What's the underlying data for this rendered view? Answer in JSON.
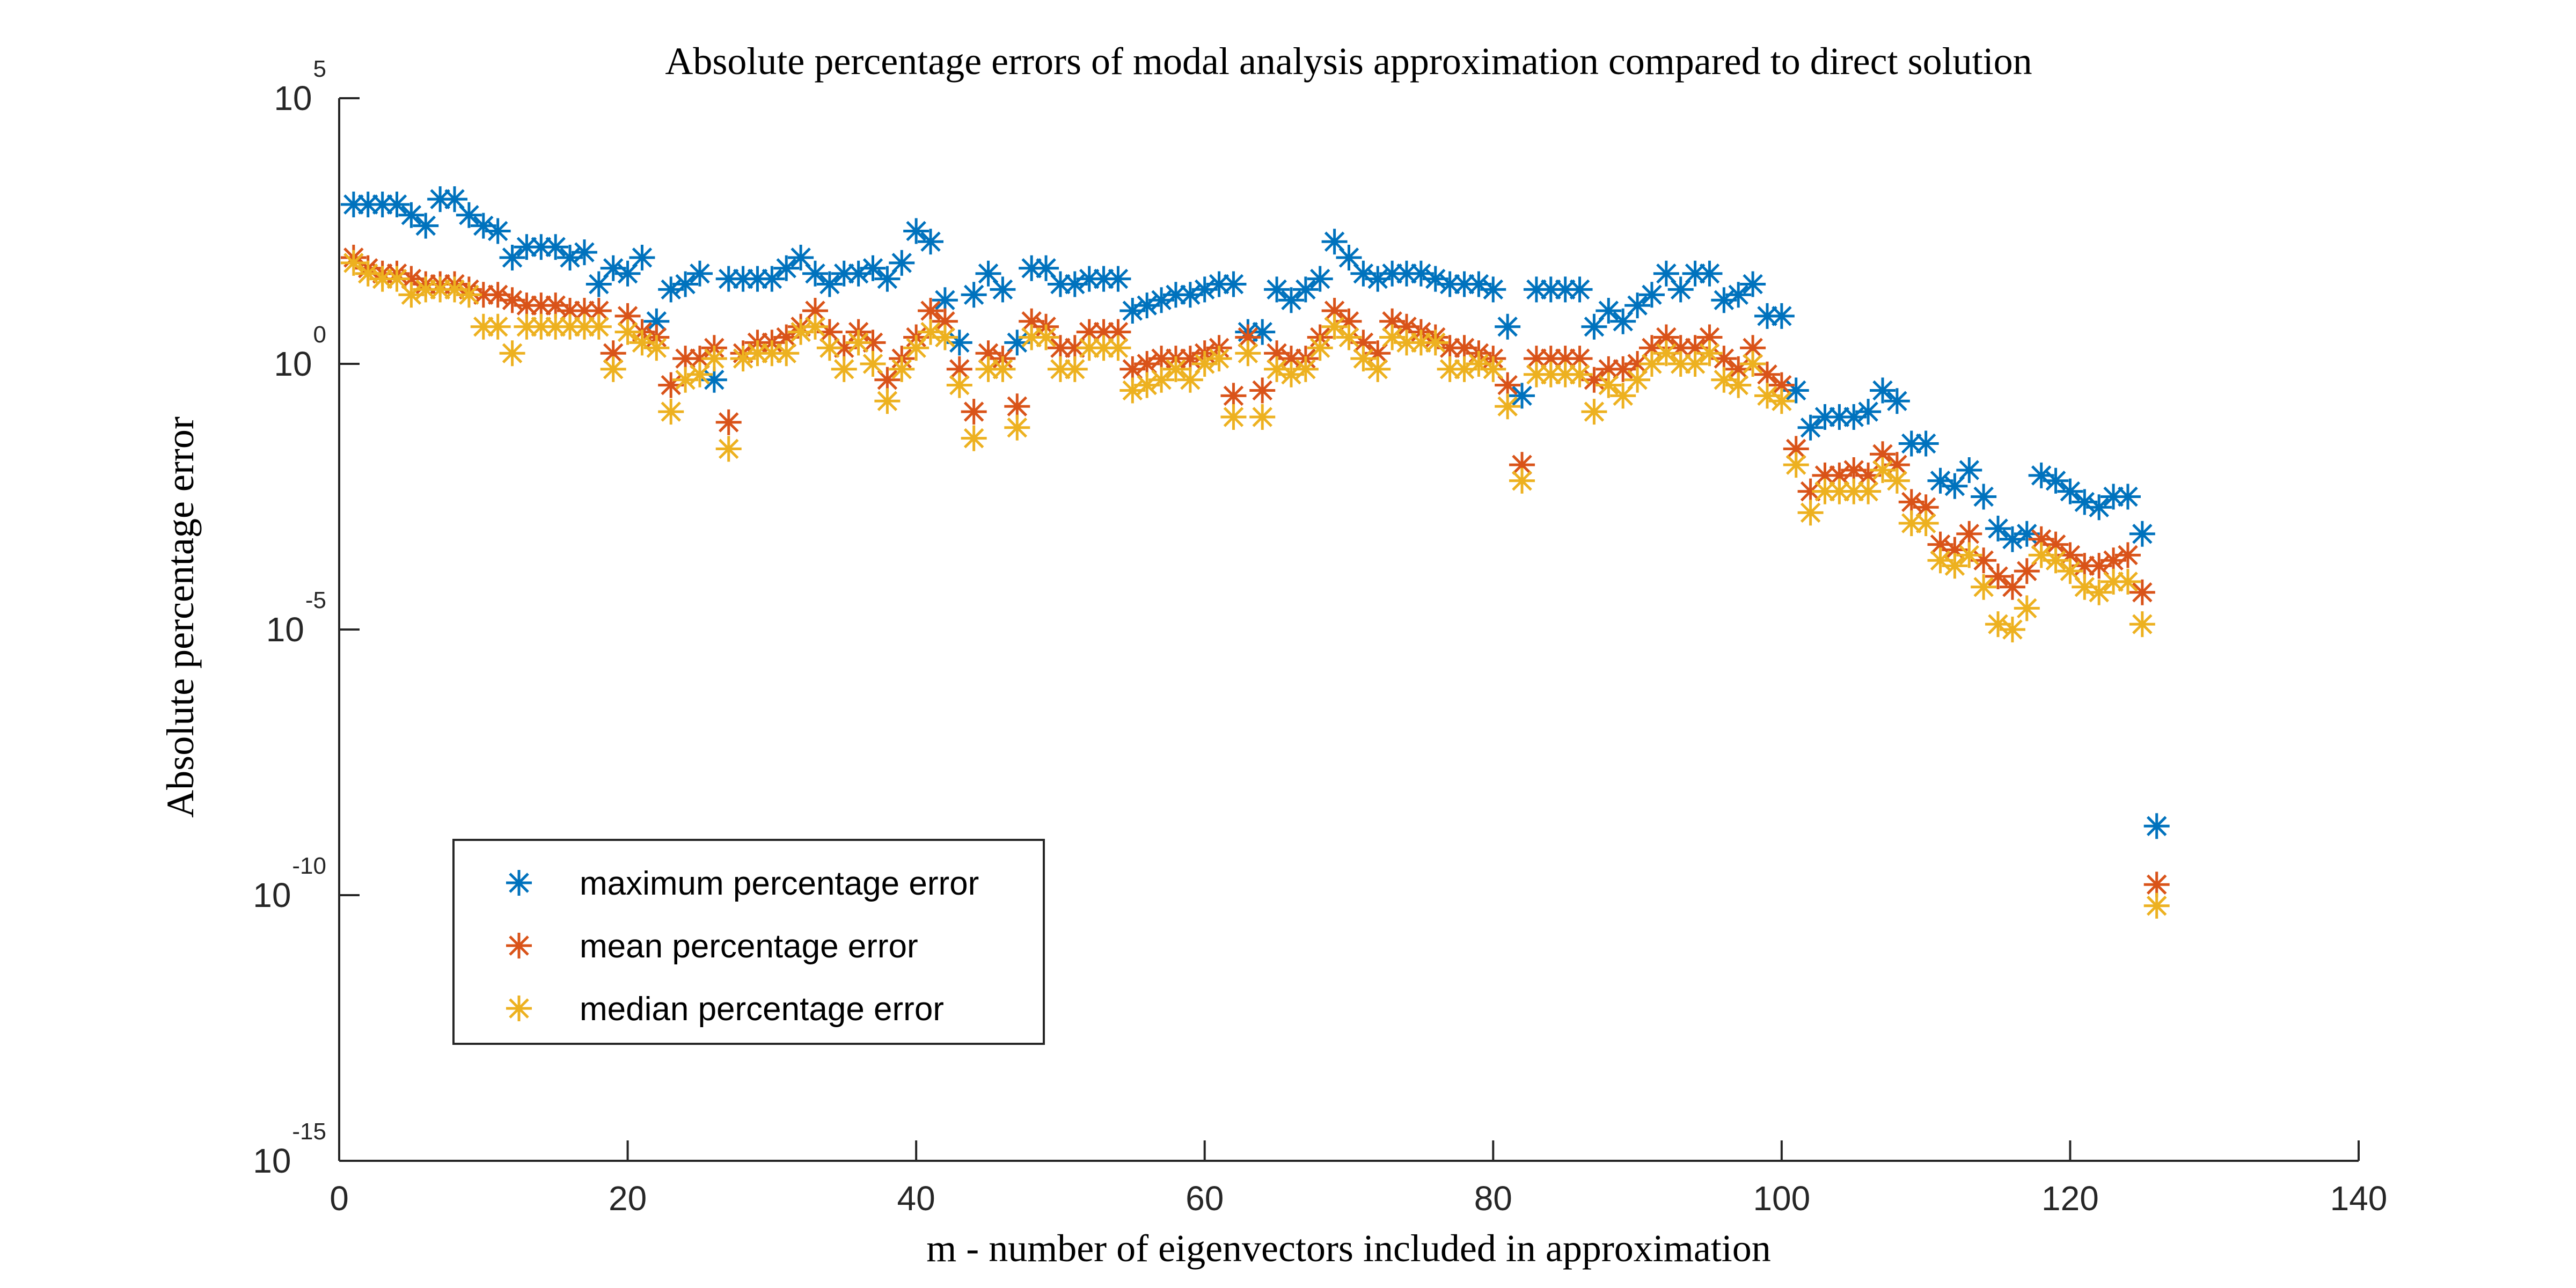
{
  "chart_data": {
    "type": "scatter",
    "title": "Absolute percentage errors of modal analysis approximation compared to direct solution",
    "xlabel": "m - number of eigenvectors included in approximation",
    "ylabel": "Absolute percentage error",
    "xlim": [
      0,
      140
    ],
    "ylim_exponent": [
      -15,
      5
    ],
    "yscale": "log",
    "grid": false,
    "legend_position": "bottom-left",
    "x_ticks": [
      "0",
      "20",
      "40",
      "60",
      "80",
      "100",
      "120",
      "140"
    ],
    "y_ticks": [
      {
        "base": "10",
        "exp": "-15",
        "value": -15
      },
      {
        "base": "10",
        "exp": "-10",
        "value": -10
      },
      {
        "base": "10",
        "exp": "-5",
        "value": -5
      },
      {
        "base": "10",
        "exp": "0",
        "value": 0
      },
      {
        "base": "10",
        "exp": "5",
        "value": 5
      }
    ],
    "x": [
      1,
      2,
      3,
      4,
      5,
      6,
      7,
      8,
      9,
      10,
      11,
      12,
      13,
      14,
      15,
      16,
      17,
      18,
      19,
      20,
      21,
      22,
      23,
      24,
      25,
      26,
      27,
      28,
      29,
      30,
      31,
      32,
      33,
      34,
      35,
      36,
      37,
      38,
      39,
      40,
      41,
      42,
      43,
      44,
      45,
      46,
      47,
      48,
      49,
      50,
      51,
      52,
      53,
      54,
      55,
      56,
      57,
      58,
      59,
      60,
      61,
      62,
      63,
      64,
      65,
      66,
      67,
      68,
      69,
      70,
      71,
      72,
      73,
      74,
      75,
      76,
      77,
      78,
      79,
      80,
      81,
      82,
      83,
      84,
      85,
      86,
      87,
      88,
      89,
      90,
      91,
      92,
      93,
      94,
      95,
      96,
      97,
      98,
      99,
      100,
      101,
      102,
      103,
      104,
      105,
      106,
      107,
      108,
      109,
      110,
      111,
      112,
      113,
      114,
      115,
      116,
      117,
      118,
      119,
      120,
      121,
      122,
      123,
      124,
      125,
      126
    ],
    "series": [
      {
        "name": "maximum percentage error",
        "color": "#0072BD",
        "log10_values": [
          3.0,
          3.0,
          3.0,
          3.0,
          2.8,
          2.6,
          3.1,
          3.1,
          2.8,
          2.6,
          2.5,
          2.0,
          2.2,
          2.2,
          2.2,
          2.0,
          2.1,
          1.5,
          1.8,
          1.7,
          2.0,
          0.8,
          1.4,
          1.5,
          1.7,
          -0.3,
          1.6,
          1.6,
          1.6,
          1.6,
          1.8,
          2.0,
          1.7,
          1.5,
          1.7,
          1.7,
          1.8,
          1.6,
          1.9,
          2.5,
          2.3,
          1.2,
          0.4,
          1.3,
          1.7,
          1.4,
          0.4,
          1.8,
          1.8,
          1.5,
          1.5,
          1.6,
          1.6,
          1.6,
          1.0,
          1.1,
          1.2,
          1.3,
          1.3,
          1.4,
          1.5,
          1.5,
          0.6,
          0.6,
          1.4,
          1.2,
          1.4,
          1.6,
          2.3,
          2.0,
          1.7,
          1.6,
          1.7,
          1.7,
          1.7,
          1.6,
          1.5,
          1.5,
          1.5,
          1.4,
          0.7,
          -0.6,
          1.4,
          1.4,
          1.4,
          1.4,
          0.7,
          1.0,
          0.8,
          1.1,
          1.3,
          1.7,
          1.4,
          1.7,
          1.7,
          1.2,
          1.3,
          1.5,
          0.9,
          0.9,
          -0.5,
          -1.2,
          -1.0,
          -1.0,
          -1.0,
          -0.9,
          -0.5,
          -0.7,
          -1.5,
          -1.5,
          -2.2,
          -2.3,
          -2.0,
          -2.5,
          -3.1,
          -3.3,
          -3.2,
          -2.1,
          -2.2,
          -2.4,
          -2.6,
          -2.7,
          -2.5,
          -2.5,
          -3.2,
          -8.7
        ]
      },
      {
        "name": "mean percentage error",
        "color": "#D95319",
        "log10_values": [
          2.0,
          1.8,
          1.7,
          1.7,
          1.6,
          1.5,
          1.5,
          1.5,
          1.4,
          1.3,
          1.3,
          1.2,
          1.1,
          1.1,
          1.1,
          1.0,
          1.0,
          1.0,
          0.2,
          0.9,
          0.6,
          0.5,
          -0.4,
          0.1,
          0.1,
          0.3,
          -1.1,
          0.2,
          0.4,
          0.4,
          0.5,
          0.7,
          1.0,
          0.6,
          0.3,
          0.6,
          0.4,
          -0.3,
          0.1,
          0.5,
          1.0,
          0.8,
          -0.1,
          -0.9,
          0.2,
          0.1,
          -0.8,
          0.8,
          0.7,
          0.3,
          0.3,
          0.6,
          0.6,
          0.6,
          -0.1,
          0.0,
          0.1,
          0.1,
          0.1,
          0.2,
          0.3,
          -0.6,
          0.5,
          -0.5,
          0.2,
          0.1,
          0.1,
          0.5,
          1.0,
          0.8,
          0.4,
          0.2,
          0.8,
          0.7,
          0.6,
          0.5,
          0.3,
          0.3,
          0.2,
          0.1,
          -0.4,
          -1.9,
          0.1,
          0.1,
          0.1,
          0.1,
          -0.3,
          -0.1,
          -0.1,
          0.0,
          0.3,
          0.5,
          0.3,
          0.3,
          0.5,
          0.1,
          -0.1,
          0.3,
          -0.2,
          -0.4,
          -1.6,
          -2.4,
          -2.1,
          -2.1,
          -2.0,
          -2.1,
          -1.7,
          -1.9,
          -2.6,
          -2.7,
          -3.4,
          -3.5,
          -3.2,
          -3.7,
          -4.0,
          -4.2,
          -3.9,
          -3.3,
          -3.4,
          -3.6,
          -3.8,
          -3.8,
          -3.7,
          -3.6,
          -4.3,
          -9.8
        ]
      },
      {
        "name": "median percentage error",
        "color": "#EDB120",
        "log10_values": [
          1.9,
          1.7,
          1.6,
          1.6,
          1.3,
          1.4,
          1.4,
          1.4,
          1.3,
          0.7,
          0.7,
          0.2,
          0.7,
          0.7,
          0.7,
          0.7,
          0.7,
          0.7,
          -0.1,
          0.6,
          0.4,
          0.3,
          -0.9,
          -0.3,
          -0.2,
          0.1,
          -1.6,
          0.1,
          0.2,
          0.2,
          0.2,
          0.6,
          0.7,
          0.3,
          -0.1,
          0.4,
          0.0,
          -0.7,
          -0.1,
          0.3,
          0.6,
          0.5,
          -0.4,
          -1.4,
          -0.1,
          -0.1,
          -1.2,
          0.5,
          0.5,
          -0.1,
          -0.1,
          0.3,
          0.3,
          0.3,
          -0.5,
          -0.4,
          -0.3,
          -0.1,
          -0.3,
          0.0,
          0.1,
          -1.0,
          0.2,
          -1.0,
          -0.1,
          -0.2,
          -0.1,
          0.3,
          0.7,
          0.5,
          0.1,
          -0.1,
          0.5,
          0.4,
          0.4,
          0.4,
          -0.1,
          -0.1,
          0.0,
          -0.1,
          -0.8,
          -2.2,
          -0.2,
          -0.2,
          -0.2,
          -0.2,
          -0.9,
          -0.4,
          -0.6,
          -0.3,
          0.0,
          0.2,
          0.0,
          0.0,
          0.2,
          -0.3,
          -0.4,
          0.0,
          -0.6,
          -0.7,
          -1.9,
          -2.8,
          -2.4,
          -2.4,
          -2.4,
          -2.4,
          -2.0,
          -2.2,
          -3.0,
          -3.0,
          -3.7,
          -3.8,
          -3.6,
          -4.2,
          -4.9,
          -5.0,
          -4.6,
          -3.6,
          -3.7,
          -3.9,
          -4.2,
          -4.3,
          -4.1,
          -4.1,
          -4.9,
          -10.2
        ]
      }
    ]
  }
}
